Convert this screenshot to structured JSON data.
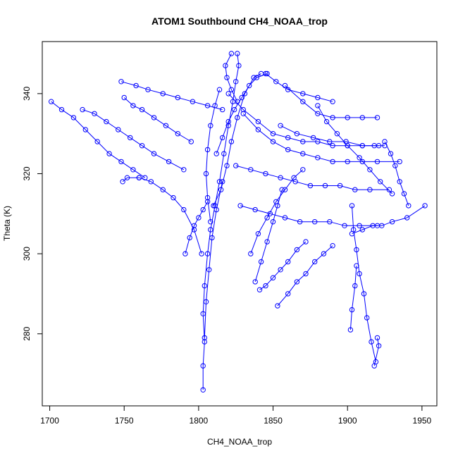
{
  "chart_data": {
    "type": "scatter",
    "title": "ATOM1 Southbound CH4_NOAA_trop",
    "xlabel": "CH4_NOAA_trop",
    "ylabel": "Theta (K)",
    "xlim": [
      1695,
      1960
    ],
    "ylim": [
      262,
      353
    ],
    "x_ticks": [
      "1700",
      "1750",
      "1800",
      "1850",
      "1900",
      "1950"
    ],
    "y_ticks": [
      "280",
      "300",
      "320",
      "340"
    ],
    "grid": false,
    "legend": "none",
    "colors": {
      "series": "#0000ff",
      "axis": "#000000"
    },
    "series": [
      {
        "segments": [
          [
            [
              1803,
              266
            ],
            [
              1803,
              272
            ],
            [
              1804,
              278
            ],
            [
              1803,
              285
            ],
            [
              1804,
              292
            ],
            [
              1806,
              300
            ],
            [
              1808,
              306
            ],
            [
              1811,
              312
            ],
            [
              1814,
              318
            ],
            [
              1817,
              325
            ],
            [
              1820,
              332
            ],
            [
              1823,
              338
            ],
            [
              1825,
              343
            ],
            [
              1827,
              347
            ],
            [
              1826,
              350
            ]
          ],
          [
            [
              1804,
              279
            ],
            [
              1805,
              288
            ],
            [
              1807,
              296
            ],
            [
              1809,
              304
            ],
            [
              1812,
              311
            ],
            [
              1816,
              318
            ]
          ],
          [
            [
              1802,
              300
            ],
            [
              1797,
              306
            ],
            [
              1790,
              311
            ],
            [
              1783,
              314
            ],
            [
              1776,
              316
            ],
            [
              1768,
              318
            ],
            [
              1760,
              319
            ]
          ],
          [
            [
              1760,
              319
            ],
            [
              1752,
              319
            ],
            [
              1749,
              318
            ]
          ],
          [
            [
              1810,
              312
            ],
            [
              1815,
              316
            ],
            [
              1819,
              322
            ],
            [
              1822,
              328
            ],
            [
              1826,
              334
            ],
            [
              1831,
              340
            ],
            [
              1837,
              344
            ],
            [
              1842,
              345
            ]
          ],
          [
            [
              1845,
              345
            ],
            [
              1852,
              343
            ],
            [
              1860,
              341
            ],
            [
              1870,
              340
            ],
            [
              1880,
              339
            ],
            [
              1890,
              338
            ]
          ],
          [
            [
              1820,
              340
            ],
            [
              1830,
              336
            ],
            [
              1840,
              333
            ],
            [
              1850,
              330
            ],
            [
              1860,
              329
            ],
            [
              1870,
              328
            ],
            [
              1880,
              328
            ],
            [
              1890,
              327
            ],
            [
              1900,
              327
            ],
            [
              1910,
              327
            ],
            [
              1918,
              327
            ],
            [
              1925,
              327
            ]
          ],
          [
            [
              1830,
              335
            ],
            [
              1840,
              331
            ],
            [
              1850,
              328
            ],
            [
              1860,
              326
            ],
            [
              1870,
              325
            ],
            [
              1880,
              324
            ],
            [
              1890,
              323
            ],
            [
              1900,
              323
            ],
            [
              1910,
              323
            ],
            [
              1920,
              323
            ],
            [
              1935,
              323
            ]
          ],
          [
            [
              1825,
              322
            ],
            [
              1835,
              321
            ],
            [
              1845,
              320
            ],
            [
              1855,
              319
            ],
            [
              1865,
              318
            ],
            [
              1875,
              317
            ],
            [
              1885,
              317
            ],
            [
              1895,
              317
            ],
            [
              1905,
              316
            ],
            [
              1915,
              316
            ],
            [
              1928,
              316
            ]
          ],
          [
            [
              1828,
              312
            ],
            [
              1838,
              311
            ],
            [
              1848,
              310
            ],
            [
              1858,
              309
            ],
            [
              1868,
              308
            ],
            [
              1878,
              308
            ],
            [
              1888,
              308
            ],
            [
              1898,
              307
            ],
            [
              1908,
              307
            ],
            [
              1920,
              307
            ]
          ],
          [
            [
              1838,
              293
            ],
            [
              1842,
              298
            ],
            [
              1846,
              303
            ],
            [
              1850,
              308
            ],
            [
              1853,
              312
            ],
            [
              1856,
              316
            ]
          ],
          [
            [
              1841,
              291
            ],
            [
              1845,
              292
            ],
            [
              1850,
              294
            ],
            [
              1855,
              296
            ],
            [
              1860,
              298
            ],
            [
              1866,
              301
            ],
            [
              1872,
              303
            ]
          ],
          [
            [
              1853,
              287
            ],
            [
              1860,
              290
            ],
            [
              1866,
              293
            ],
            [
              1872,
              295
            ],
            [
              1878,
              298
            ],
            [
              1884,
              300
            ],
            [
              1890,
              302
            ]
          ],
          [
            [
              1919,
              273
            ],
            [
              1916,
              278
            ],
            [
              1913,
              284
            ],
            [
              1911,
              290
            ],
            [
              1908,
              295
            ],
            [
              1906,
              301
            ],
            [
              1904,
              306
            ],
            [
              1903,
              312
            ]
          ],
          [
            [
              1918,
              272
            ],
            [
              1921,
              277
            ],
            [
              1920,
              279
            ]
          ],
          [
            [
              1902,
              281
            ],
            [
              1903,
              286
            ],
            [
              1905,
              292
            ],
            [
              1906,
              297
            ]
          ],
          [
            [
              1701,
              338
            ],
            [
              1708,
              336
            ],
            [
              1716,
              334
            ],
            [
              1724,
              331
            ],
            [
              1732,
              328
            ],
            [
              1740,
              325
            ],
            [
              1748,
              323
            ],
            [
              1756,
              321
            ],
            [
              1764,
              319
            ]
          ],
          [
            [
              1722,
              336
            ],
            [
              1730,
              335
            ],
            [
              1738,
              333
            ],
            [
              1746,
              331
            ],
            [
              1754,
              329
            ],
            [
              1762,
              327
            ],
            [
              1770,
              325
            ],
            [
              1780,
              323
            ],
            [
              1790,
              321
            ]
          ],
          [
            [
              1748,
              343
            ],
            [
              1758,
              342
            ],
            [
              1766,
              341
            ],
            [
              1776,
              340
            ],
            [
              1786,
              339
            ],
            [
              1796,
              338
            ],
            [
              1806,
              337
            ],
            [
              1816,
              336
            ]
          ],
          [
            [
              1750,
              339
            ],
            [
              1756,
              337
            ],
            [
              1762,
              336
            ],
            [
              1770,
              334
            ],
            [
              1778,
              332
            ],
            [
              1786,
              330
            ],
            [
              1795,
              328
            ]
          ],
          [
            [
              1858,
              342
            ],
            [
              1870,
              338
            ],
            [
              1880,
              335
            ],
            [
              1890,
              334
            ],
            [
              1900,
              334
            ],
            [
              1910,
              334
            ],
            [
              1920,
              334
            ]
          ],
          [
            [
              1835,
              300
            ],
            [
              1840,
              305
            ],
            [
              1846,
              309
            ],
            [
              1852,
              313
            ],
            [
              1858,
              316
            ],
            [
              1864,
              319
            ],
            [
              1870,
              321
            ]
          ],
          [
            [
              1855,
              332
            ],
            [
              1866,
              330
            ],
            [
              1877,
              329
            ],
            [
              1888,
              328
            ],
            [
              1899,
              328
            ],
            [
              1910,
              327
            ],
            [
              1921,
              327
            ]
          ],
          [
            [
              1903,
              305
            ],
            [
              1910,
              306
            ],
            [
              1917,
              307
            ],
            [
              1923,
              307
            ],
            [
              1930,
              308
            ],
            [
              1940,
              309
            ],
            [
              1952,
              312
            ]
          ],
          [
            [
              1925,
              328
            ],
            [
              1929,
              325
            ],
            [
              1932,
              322
            ],
            [
              1935,
              318
            ],
            [
              1938,
              315
            ],
            [
              1941,
              312
            ]
          ],
          [
            [
              1880,
              337
            ],
            [
              1886,
              333
            ],
            [
              1893,
              330
            ],
            [
              1900,
              327
            ],
            [
              1908,
              324
            ],
            [
              1915,
              321
            ],
            [
              1922,
              318
            ],
            [
              1930,
              315
            ]
          ],
          [
            [
              1812,
              325
            ],
            [
              1816,
              329
            ],
            [
              1820,
              333
            ],
            [
              1824,
              336
            ],
            [
              1829,
              339
            ],
            [
              1834,
              342
            ],
            [
              1839,
              344
            ],
            [
              1846,
              345
            ]
          ],
          [
            [
              1808,
              308
            ],
            [
              1806,
              314
            ],
            [
              1805,
              320
            ],
            [
              1806,
              326
            ],
            [
              1808,
              332
            ],
            [
              1811,
              337
            ],
            [
              1814,
              341
            ]
          ],
          [
            [
              1791,
              300
            ],
            [
              1794,
              304
            ],
            [
              1797,
              307
            ],
            [
              1800,
              309
            ],
            [
              1803,
              311
            ],
            [
              1806,
              313
            ]
          ],
          [
            [
              1826,
              338
            ],
            [
              1822,
              341
            ],
            [
              1819,
              344
            ],
            [
              1818,
              347
            ],
            [
              1822,
              350
            ]
          ]
        ]
      }
    ]
  }
}
